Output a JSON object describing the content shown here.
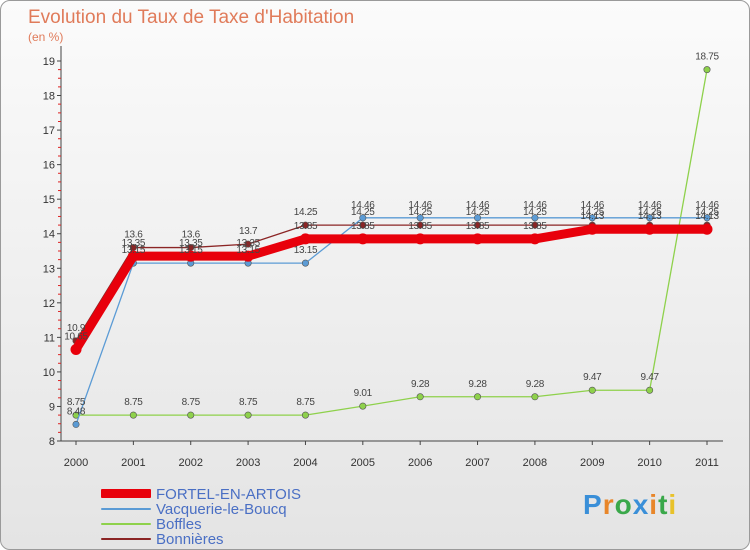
{
  "title": "Evolution du Taux de Taxe d'Habitation",
  "subtitle": "(en %)",
  "logo": {
    "text": "Proxiti",
    "colors": [
      "#3a8fd8",
      "#e8862a",
      "#3aa84a",
      "#3a8fd8",
      "#e8862a",
      "#3aa84a",
      "#e8c22a"
    ]
  },
  "chart_data": {
    "type": "line",
    "title": "Evolution du Taux de Taxe d'Habitation",
    "ylabel": "(en %)",
    "xlabel": "",
    "ylim": [
      8,
      19
    ],
    "yticks": [
      "8",
      "9",
      "10",
      "11",
      "12",
      "13",
      "14",
      "15",
      "16",
      "17",
      "18",
      "19"
    ],
    "categories": [
      "2000",
      "2001",
      "2002",
      "2003",
      "2004",
      "2005",
      "2006",
      "2007",
      "2008",
      "2009",
      "2010",
      "2011"
    ],
    "grid": false,
    "legend": "bottom-left",
    "series": [
      {
        "name": "FORTEL-EN-ARTOIS",
        "color": "#e8000b",
        "values": [
          10.65,
          13.35,
          13.35,
          13.35,
          13.85,
          13.85,
          13.85,
          13.85,
          13.85,
          14.13,
          14.13,
          14.13
        ],
        "labels": [
          "10.65",
          "13.35",
          "13.35",
          "13.35",
          "13.85",
          "13.85",
          "13.85",
          "13.85",
          "13.85",
          "14.13",
          "14.13",
          "14.13"
        ]
      },
      {
        "name": "Vacquerie-le-Boucq",
        "color": "#5b9bd5",
        "values": [
          8.48,
          13.15,
          13.15,
          13.15,
          13.15,
          14.46,
          14.46,
          14.46,
          14.46,
          14.46,
          14.46,
          14.46
        ],
        "labels": [
          "8.48",
          "13.15",
          "13.15",
          "13.15",
          "13.15",
          "14.46",
          "14.46",
          "14.46",
          "14.46",
          "14.46",
          "14.46",
          "14.46"
        ]
      },
      {
        "name": "Boffles",
        "color": "#8ed14b",
        "values": [
          8.75,
          8.75,
          8.75,
          8.75,
          8.75,
          9.01,
          9.28,
          9.28,
          9.28,
          9.47,
          9.47,
          18.75
        ],
        "labels": [
          "8.75",
          "8.75",
          "8.75",
          "8.75",
          "8.75",
          "9.01",
          "9.28",
          "9.28",
          "9.28",
          "9.47",
          "9.47",
          "18.75"
        ]
      },
      {
        "name": "Bonnières",
        "color": "#8b2525",
        "values": [
          10.9,
          13.6,
          13.6,
          13.7,
          14.25,
          14.25,
          14.25,
          14.25,
          14.25,
          14.25,
          14.25,
          14.25
        ],
        "labels": [
          "10.9",
          "13.6",
          "13.6",
          "13.7",
          "14.25",
          "14.25",
          "14.25",
          "14.25",
          "14.25",
          "14.25",
          "14.25",
          "14.25"
        ]
      }
    ]
  }
}
